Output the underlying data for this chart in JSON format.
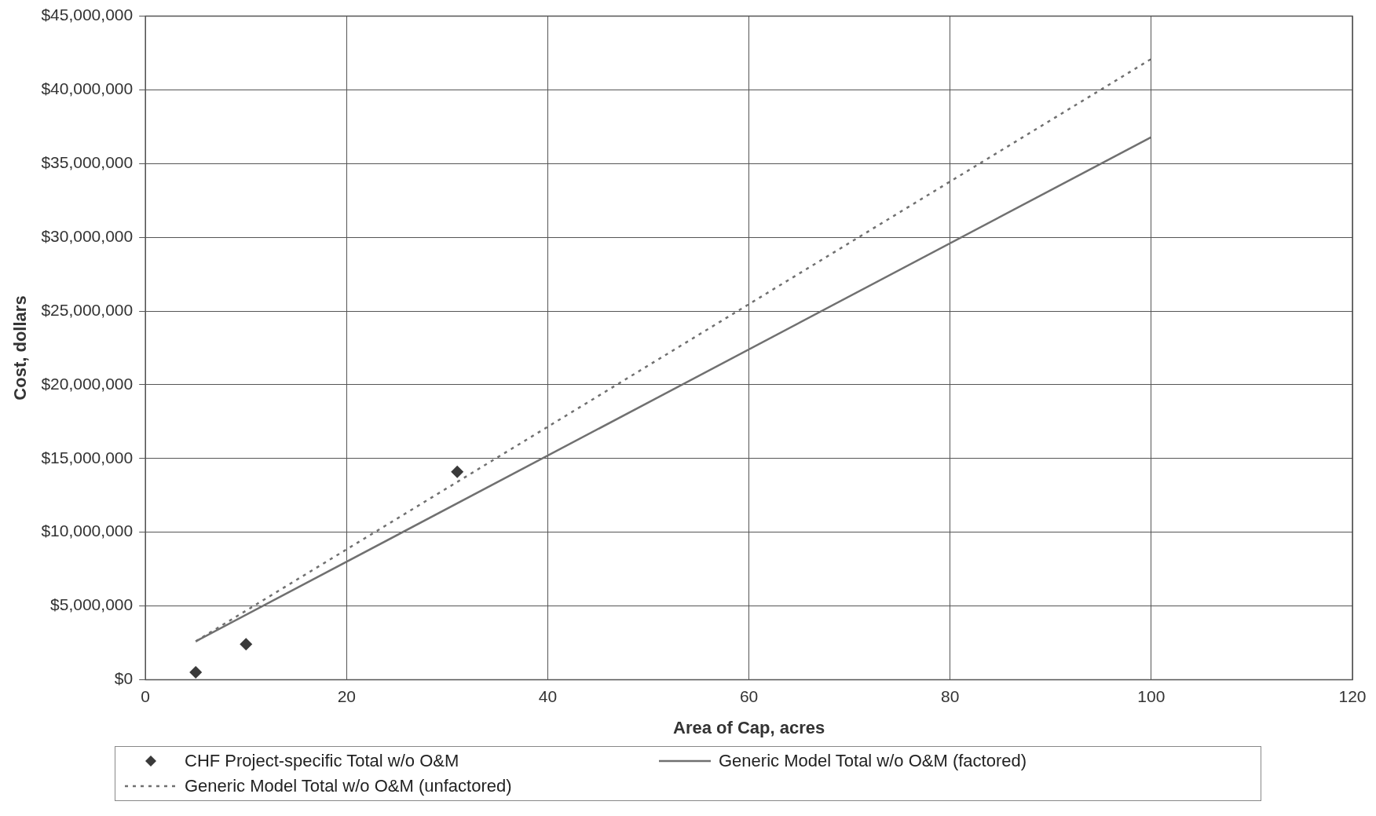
{
  "chart_data": {
    "type": "scatter",
    "xlabel": "Area of Cap, acres",
    "ylabel": "Cost, dollars",
    "xlim": [
      0,
      120
    ],
    "xticks": [
      0,
      20,
      40,
      60,
      80,
      100,
      120
    ],
    "ylim": [
      0,
      45000000
    ],
    "yticks": [
      {
        "value": 0,
        "label": "$0"
      },
      {
        "value": 5000000,
        "label": "$5,000,000"
      },
      {
        "value": 10000000,
        "label": "$10,000,000"
      },
      {
        "value": 15000000,
        "label": "$15,000,000"
      },
      {
        "value": 20000000,
        "label": "$20,000,000"
      },
      {
        "value": 25000000,
        "label": "$25,000,000"
      },
      {
        "value": 30000000,
        "label": "$30,000,000"
      },
      {
        "value": 35000000,
        "label": "$35,000,000"
      },
      {
        "value": 40000000,
        "label": "$40,000,000"
      },
      {
        "value": 45000000,
        "label": "$45,000,000"
      }
    ],
    "grid": true,
    "legend": "bottom",
    "series": [
      {
        "name": "CHF Project-specific Total w/o O&M",
        "marker": "diamond",
        "color": "#3a3a3a",
        "x": [
          5,
          10,
          31
        ],
        "values": [
          500000,
          2400000,
          14100000
        ]
      },
      {
        "name": "Generic Model Total w/o O&M (factored)",
        "type": "line",
        "marker": "none",
        "line_style": "solid",
        "color": "#707070",
        "x": [
          5,
          100
        ],
        "values": [
          2600000,
          36800000
        ]
      },
      {
        "name": "Generic Model Total w/o O&M (unfactored)",
        "type": "line",
        "marker": "none",
        "line_style": "dotted",
        "color": "#707070",
        "x": [
          5,
          100
        ],
        "values": [
          2600000,
          42100000
        ]
      }
    ]
  }
}
